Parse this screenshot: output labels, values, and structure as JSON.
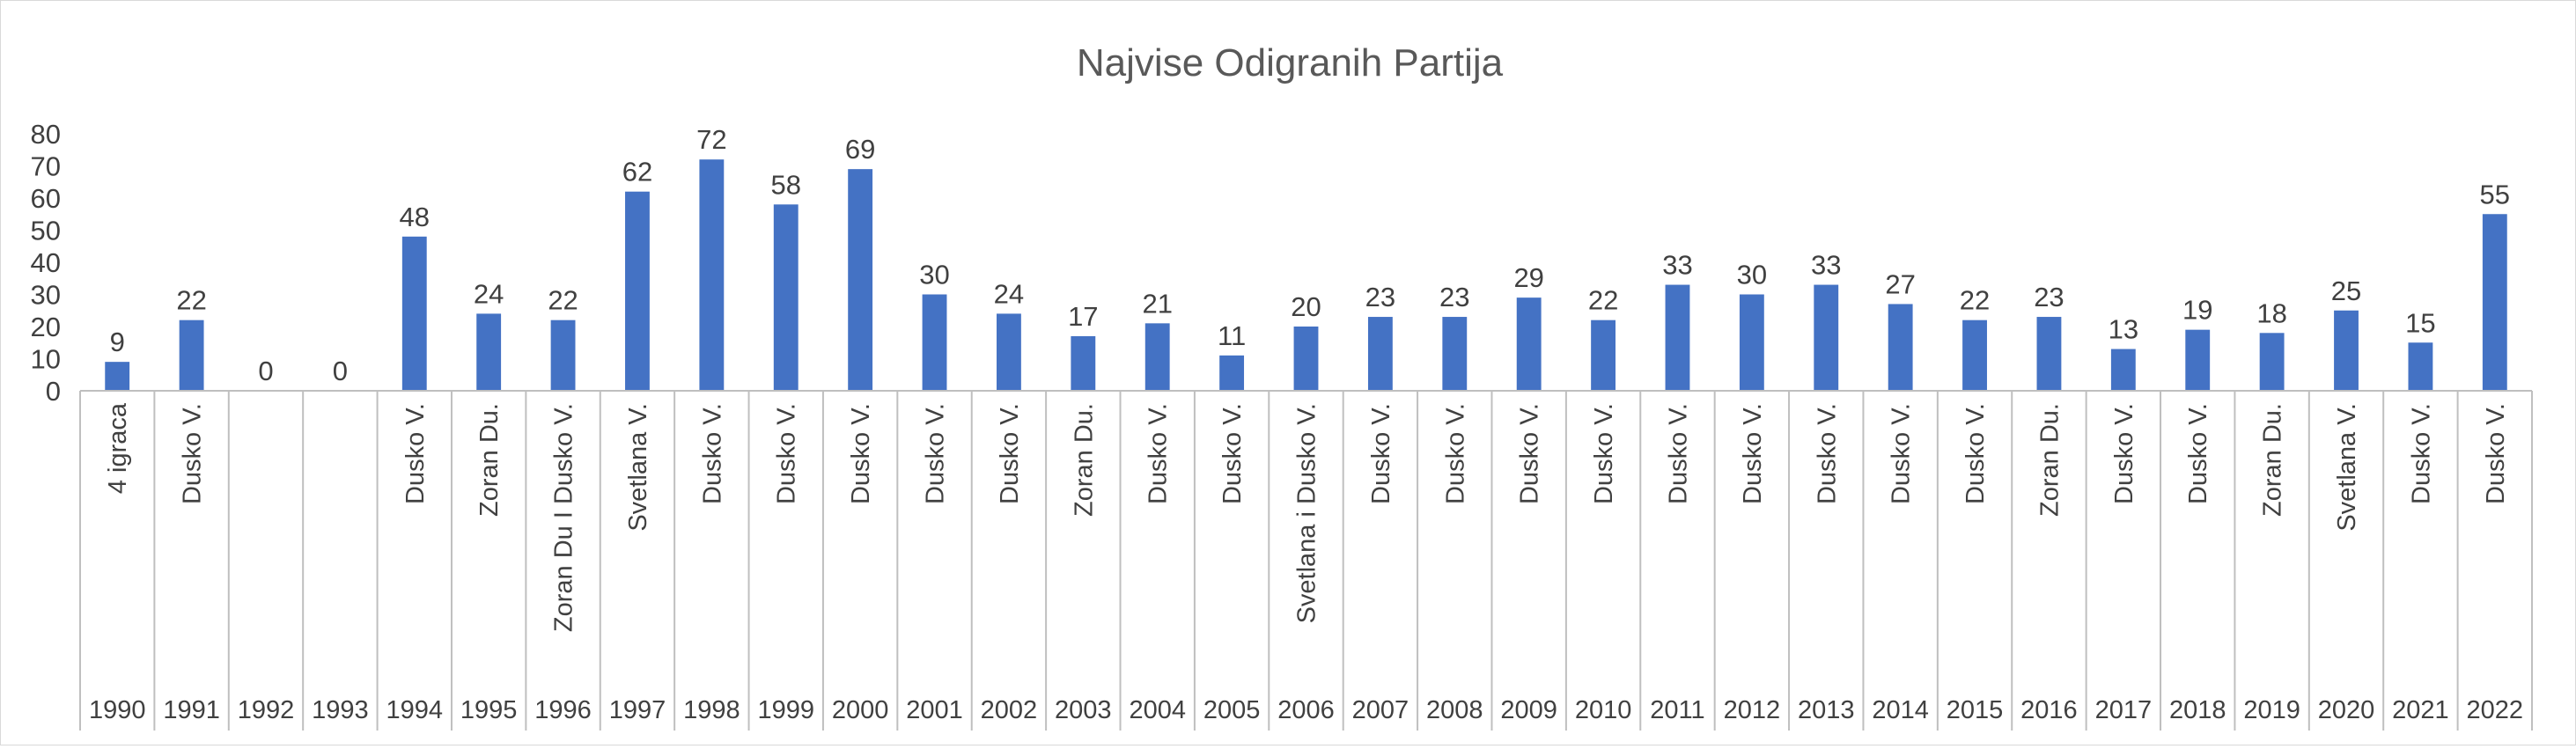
{
  "chart_data": {
    "type": "bar",
    "title": "Najvise Odigranih Partija",
    "xlabel": "",
    "ylabel": "",
    "ylim": [
      0,
      80
    ],
    "yticks": [
      "0",
      "10",
      "20",
      "30",
      "40",
      "50",
      "60",
      "70",
      "80"
    ],
    "categories": [
      "1990",
      "1991",
      "1992",
      "1993",
      "1994",
      "1995",
      "1996",
      "1997",
      "1998",
      "1999",
      "2000",
      "2001",
      "2002",
      "2003",
      "2004",
      "2005",
      "2006",
      "2007",
      "2008",
      "2009",
      "2010",
      "2011",
      "2012",
      "2013",
      "2014",
      "2015",
      "2016",
      "2017",
      "2018",
      "2019",
      "2020",
      "2021",
      "2022"
    ],
    "player_labels": [
      "4 igraca",
      "Dusko V.",
      "",
      "",
      "Dusko V.",
      "Zoran Du.",
      "Zoran Du I Dusko V.",
      "Svetlana V.",
      "Dusko V.",
      "Dusko V.",
      "Dusko V.",
      "Dusko V.",
      "Dusko V.",
      "Zoran Du.",
      "Dusko V.",
      "Dusko V.",
      "Svetlana i Dusko V.",
      "Dusko V.",
      "Dusko V.",
      "Dusko V.",
      "Dusko V.",
      "Dusko V.",
      "Dusko V.",
      "Dusko V.",
      "Dusko V.",
      "Dusko V.",
      "Zoran Du.",
      "Dusko V.",
      "Dusko V.",
      "Zoran Du.",
      "Svetlana V.",
      "Dusko V.",
      "Dusko V."
    ],
    "values": [
      9,
      22,
      0,
      0,
      48,
      24,
      22,
      62,
      72,
      58,
      69,
      30,
      24,
      17,
      21,
      11,
      20,
      23,
      23,
      29,
      22,
      33,
      30,
      33,
      27,
      22,
      23,
      13,
      19,
      18,
      25,
      15,
      55
    ],
    "bar_color": "#4472c4",
    "grid": false,
    "legend": "none"
  }
}
